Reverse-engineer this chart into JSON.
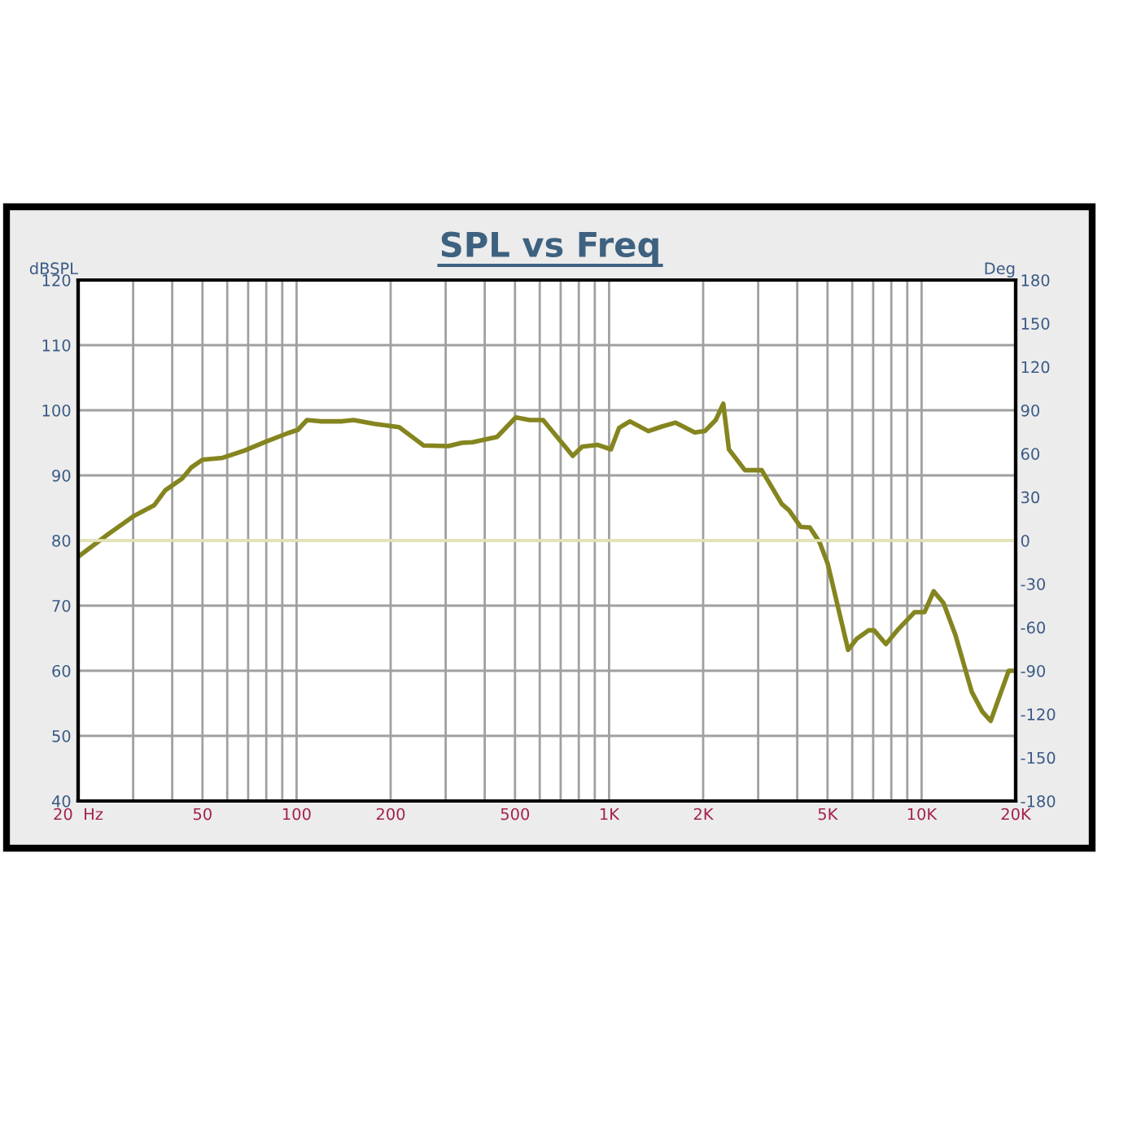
{
  "chart_data": {
    "type": "line",
    "title": "SPL vs Freq",
    "ylabel": "dBSPL",
    "y2label": "Deg",
    "log": "x",
    "grid": true,
    "marker": "none",
    "line_style": "solid",
    "xlim": [
      20,
      20000
    ],
    "xticks": [
      {
        "value": 20,
        "label": "20  Hz"
      },
      {
        "value": 30,
        "label": null
      },
      {
        "value": 40,
        "label": null
      },
      {
        "value": 50,
        "label": "50"
      },
      {
        "value": 60,
        "label": null
      },
      {
        "value": 70,
        "label": null
      },
      {
        "value": 80,
        "label": null
      },
      {
        "value": 90,
        "label": null
      },
      {
        "value": 100,
        "label": "100"
      },
      {
        "value": 200,
        "label": "200"
      },
      {
        "value": 300,
        "label": null
      },
      {
        "value": 400,
        "label": null
      },
      {
        "value": 500,
        "label": "500"
      },
      {
        "value": 600,
        "label": null
      },
      {
        "value": 700,
        "label": null
      },
      {
        "value": 800,
        "label": null
      },
      {
        "value": 900,
        "label": null
      },
      {
        "value": 1000,
        "label": "1K"
      },
      {
        "value": 2000,
        "label": "2K"
      },
      {
        "value": 3000,
        "label": null
      },
      {
        "value": 4000,
        "label": null
      },
      {
        "value": 5000,
        "label": "5K"
      },
      {
        "value": 6000,
        "label": null
      },
      {
        "value": 7000,
        "label": null
      },
      {
        "value": 8000,
        "label": null
      },
      {
        "value": 9000,
        "label": null
      },
      {
        "value": 10000,
        "label": "10K"
      },
      {
        "value": 20000,
        "label": "20K"
      }
    ],
    "ylim": [
      40,
      120
    ],
    "yticks": [
      40,
      50,
      60,
      70,
      80,
      90,
      100,
      110,
      120
    ],
    "y2lim": [
      -180,
      180
    ],
    "y2ticks": [
      -180,
      -150,
      -120,
      -90,
      -60,
      -30,
      0,
      30,
      60,
      90,
      120,
      150,
      180
    ],
    "ref_lines": [
      {
        "axis": "y2",
        "value": 0,
        "color": "#e4e4b8"
      }
    ],
    "series": [
      {
        "color": "#858520",
        "x": [
          20,
          25,
          30,
          35,
          38,
          43,
          46,
          50,
          58,
          68,
          80,
          94,
          101,
          108,
          119,
          140,
          152,
          178,
          213,
          255,
          306,
          338,
          366,
          438,
          503,
          557,
          615,
          765,
          820,
          917,
          1014,
          1077,
          1166,
          1336,
          1475,
          1632,
          1880,
          2026,
          2194,
          2320,
          2418,
          2720,
          3080,
          3570,
          3770,
          4100,
          4390,
          4720,
          5010,
          5820,
          6200,
          6760,
          7050,
          7690,
          8430,
          9500,
          10220,
          10930,
          11750,
          12830,
          14460,
          15650,
          16640,
          19000,
          20000
        ],
        "values": [
          77.5,
          81.0,
          83.7,
          85.4,
          87.7,
          89.5,
          91.2,
          92.4,
          92.7,
          93.8,
          95.2,
          96.5,
          97.0,
          98.5,
          98.3,
          98.3,
          98.5,
          97.9,
          97.4,
          94.6,
          94.5,
          95.0,
          95.1,
          95.9,
          98.9,
          98.5,
          98.5,
          93.0,
          94.4,
          94.7,
          94.0,
          97.3,
          98.3,
          96.8,
          97.5,
          98.1,
          96.6,
          96.8,
          98.5,
          101.0,
          94.0,
          90.8,
          90.8,
          85.6,
          84.6,
          82.1,
          82.0,
          79.7,
          76.4,
          63.2,
          64.9,
          66.2,
          66.2,
          64.1,
          66.4,
          69.0,
          69.0,
          72.2,
          70.4,
          65.5,
          56.8,
          53.7,
          52.3,
          60.0,
          60.0
        ]
      }
    ]
  }
}
